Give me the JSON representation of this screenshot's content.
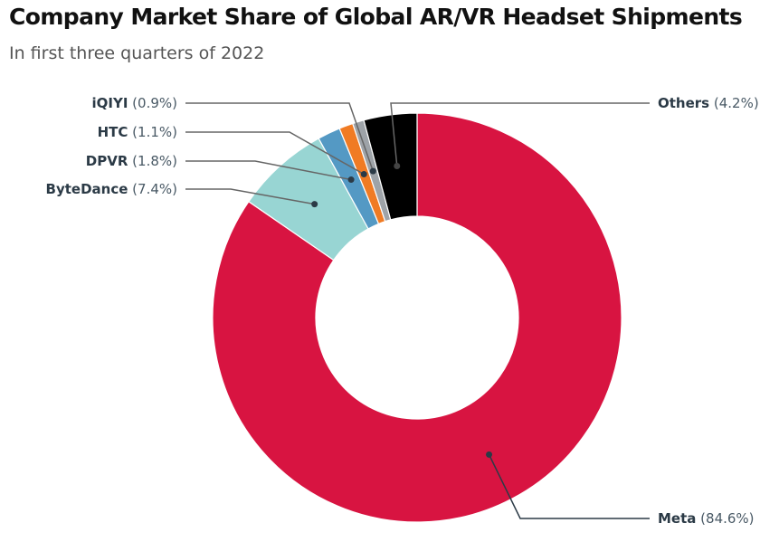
{
  "chart_data": {
    "type": "pie",
    "variant": "donut",
    "title": "Company Market Share of Global AR/VR Headset Shipments",
    "subtitle": "In first three quarters of 2022",
    "unit": "%",
    "slices": [
      {
        "name": "Meta",
        "value": 84.6,
        "label": "(84.6%)",
        "color": "#d81441"
      },
      {
        "name": "ByteDance",
        "value": 7.4,
        "label": "(7.4%)",
        "color": "#98d5d3"
      },
      {
        "name": "DPVR",
        "value": 1.8,
        "label": "(1.8%)",
        "color": "#5499c4"
      },
      {
        "name": "HTC",
        "value": 1.1,
        "label": "(1.1%)",
        "color": "#f07b24"
      },
      {
        "name": "iQIYI",
        "value": 0.9,
        "label": "(0.9%)",
        "color": "#9ea3a8"
      },
      {
        "name": "Others",
        "value": 4.2,
        "label": "(4.2%)",
        "color": "#000000"
      }
    ]
  }
}
